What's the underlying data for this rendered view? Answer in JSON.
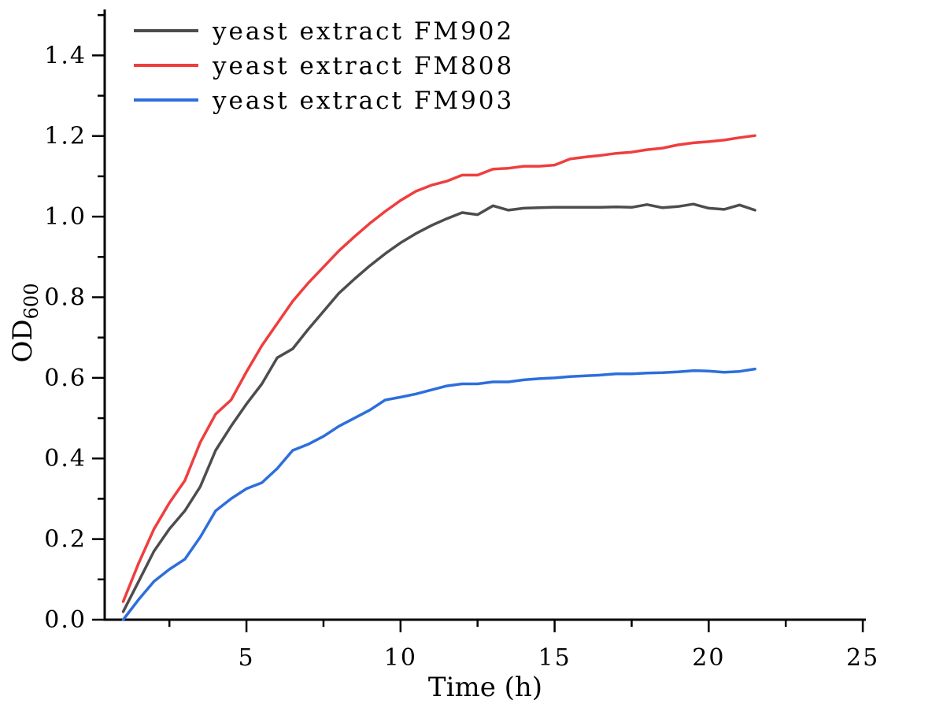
{
  "chart_data": {
    "type": "line",
    "title": "",
    "xlabel": "Time (h)",
    "ylabel": "OD",
    "ylabel_subscript": "600",
    "legend_position": "upper-left",
    "grid": false,
    "background": "#ffffff",
    "axis_color": "#000000",
    "xlim": [
      0.4,
      25.1
    ],
    "ylim": [
      0,
      1.514
    ],
    "xticks_major": [
      5,
      10,
      15,
      20,
      25
    ],
    "xticks_minor": [
      2.5,
      7.5,
      12.5,
      17.5,
      22.5
    ],
    "yticks_major": [
      0.0,
      0.2,
      0.4,
      0.6,
      0.8,
      1.0,
      1.2,
      1.4
    ],
    "yticks_minor": [
      0.1,
      0.3,
      0.5,
      0.7,
      0.9,
      1.1,
      1.3,
      1.5
    ],
    "x": [
      1,
      1.5,
      2,
      2.5,
      3,
      3.5,
      4,
      4.5,
      5,
      5.5,
      6,
      6.5,
      7,
      7.5,
      8,
      8.5,
      9,
      9.5,
      10,
      10.5,
      11,
      11.5,
      12,
      12.5,
      13,
      13.5,
      14,
      14.5,
      15,
      15.5,
      16,
      16.5,
      17,
      17.5,
      18,
      18.5,
      19,
      19.5,
      20,
      20.5,
      21,
      21.5
    ],
    "series": [
      {
        "name": "yeast extract FM902",
        "color": "#4d4d4d",
        "values": [
          0.02,
          0.095,
          0.17,
          0.225,
          0.27,
          0.33,
          0.42,
          0.48,
          0.535,
          0.585,
          0.65,
          0.672,
          0.72,
          0.765,
          0.81,
          0.845,
          0.878,
          0.908,
          0.935,
          0.958,
          0.978,
          0.995,
          1.01,
          1.005,
          1.027,
          1.016,
          1.021,
          1.022,
          1.023,
          1.023,
          1.023,
          1.023,
          1.024,
          1.023,
          1.03,
          1.022,
          1.025,
          1.031,
          1.021,
          1.018,
          1.029,
          1.016
        ]
      },
      {
        "name": "yeast extract FM808",
        "color": "#ef3e3e",
        "values": [
          0.045,
          0.14,
          0.225,
          0.29,
          0.345,
          0.44,
          0.51,
          0.545,
          0.615,
          0.68,
          0.735,
          0.79,
          0.835,
          0.875,
          0.915,
          0.95,
          0.983,
          1.013,
          1.04,
          1.063,
          1.078,
          1.088,
          1.103,
          1.103,
          1.118,
          1.12,
          1.125,
          1.125,
          1.128,
          1.143,
          1.148,
          1.152,
          1.157,
          1.16,
          1.166,
          1.17,
          1.178,
          1.183,
          1.186,
          1.19,
          1.196,
          1.201
        ]
      },
      {
        "name": "yeast extract FM903",
        "color": "#2d6edc",
        "values": [
          0.0,
          0.05,
          0.095,
          0.125,
          0.15,
          0.205,
          0.27,
          0.3,
          0.325,
          0.34,
          0.375,
          0.42,
          0.435,
          0.455,
          0.48,
          0.5,
          0.52,
          0.545,
          0.552,
          0.56,
          0.57,
          0.58,
          0.585,
          0.585,
          0.59,
          0.59,
          0.595,
          0.598,
          0.6,
          0.603,
          0.605,
          0.607,
          0.61,
          0.61,
          0.612,
          0.613,
          0.615,
          0.618,
          0.617,
          0.614,
          0.616,
          0.622
        ]
      }
    ]
  }
}
